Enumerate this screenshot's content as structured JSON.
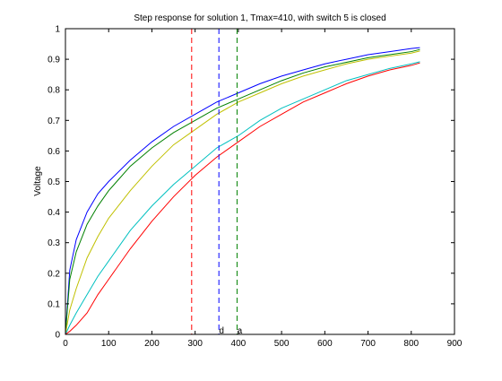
{
  "chart_data": {
    "type": "line",
    "title": "Step response for solution 1, Tmax=410, with switch 5 is closed",
    "xlabel": "",
    "ylabel": "Voltage",
    "xlim": [
      0,
      900
    ],
    "ylim": [
      0,
      1
    ],
    "xticks": [
      0,
      100,
      200,
      300,
      400,
      500,
      600,
      700,
      800,
      900
    ],
    "yticks": [
      0,
      0.1,
      0.2,
      0.3,
      0.4,
      0.5,
      0.6,
      0.7,
      0.8,
      0.9,
      1
    ],
    "grid": false,
    "series": [
      {
        "color": "#0000ff",
        "x": [
          0,
          10,
          25,
          50,
          75,
          100,
          150,
          200,
          250,
          300,
          350,
          400,
          450,
          500,
          550,
          600,
          650,
          700,
          750,
          800,
          820
        ],
        "y": [
          0,
          0.21,
          0.31,
          0.4,
          0.46,
          0.5,
          0.57,
          0.63,
          0.68,
          0.72,
          0.76,
          0.79,
          0.82,
          0.845,
          0.865,
          0.885,
          0.9,
          0.915,
          0.925,
          0.935,
          0.938
        ]
      },
      {
        "color": "#008000",
        "x": [
          0,
          10,
          25,
          50,
          75,
          100,
          150,
          200,
          250,
          300,
          350,
          400,
          450,
          500,
          550,
          600,
          650,
          700,
          750,
          800,
          820
        ],
        "y": [
          0,
          0.18,
          0.27,
          0.36,
          0.42,
          0.47,
          0.55,
          0.61,
          0.66,
          0.7,
          0.74,
          0.77,
          0.8,
          0.83,
          0.855,
          0.875,
          0.89,
          0.905,
          0.915,
          0.925,
          0.932
        ]
      },
      {
        "color": "#c0c000",
        "x": [
          0,
          10,
          25,
          50,
          75,
          100,
          150,
          200,
          250,
          300,
          350,
          400,
          450,
          500,
          550,
          600,
          650,
          700,
          750,
          800,
          820
        ],
        "y": [
          0,
          0.08,
          0.15,
          0.25,
          0.32,
          0.38,
          0.47,
          0.55,
          0.62,
          0.67,
          0.72,
          0.76,
          0.79,
          0.82,
          0.845,
          0.865,
          0.885,
          0.9,
          0.91,
          0.92,
          0.927
        ]
      },
      {
        "color": "#00c0c0",
        "x": [
          0,
          10,
          25,
          50,
          75,
          100,
          150,
          200,
          250,
          300,
          350,
          400,
          450,
          500,
          550,
          600,
          650,
          700,
          750,
          800,
          820
        ],
        "y": [
          0,
          0.03,
          0.07,
          0.13,
          0.19,
          0.24,
          0.34,
          0.42,
          0.49,
          0.55,
          0.61,
          0.65,
          0.7,
          0.74,
          0.77,
          0.8,
          0.83,
          0.85,
          0.87,
          0.885,
          0.892
        ]
      },
      {
        "color": "#ff0000",
        "x": [
          0,
          10,
          25,
          50,
          75,
          100,
          150,
          200,
          250,
          300,
          350,
          400,
          450,
          500,
          550,
          600,
          650,
          700,
          750,
          800,
          820
        ],
        "y": [
          0,
          0.01,
          0.03,
          0.07,
          0.13,
          0.18,
          0.28,
          0.37,
          0.45,
          0.52,
          0.58,
          0.63,
          0.68,
          0.72,
          0.76,
          0.79,
          0.82,
          0.845,
          0.865,
          0.88,
          0.888
        ]
      }
    ],
    "vlines": [
      {
        "x": 292,
        "color": "#ff0000",
        "label": ""
      },
      {
        "x": 355,
        "color": "#0000ff",
        "label": "d"
      },
      {
        "x": 397,
        "color": "#008000",
        "label": "a"
      }
    ]
  }
}
